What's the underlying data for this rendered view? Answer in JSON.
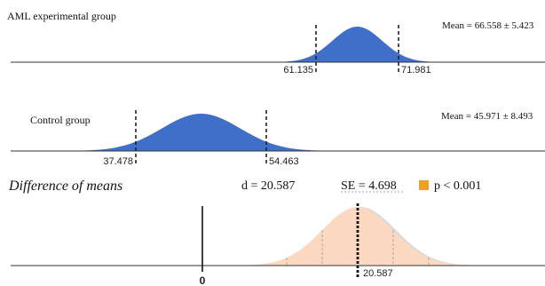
{
  "chart_data": {
    "type": "area",
    "panels": [
      {
        "group": "AML experimental group",
        "mean": 66.558,
        "sd": 5.423,
        "summary": "Mean = 66.558 ± 5.423",
        "lower": 61.135,
        "upper": 71.981,
        "lower_label": "61.135",
        "upper_label": "71.981",
        "color": "#3f6fc8"
      },
      {
        "group": "Control group",
        "mean": 45.971,
        "sd": 8.493,
        "summary": "Mean = 45.971 ± 8.493",
        "lower": 37.478,
        "upper": 54.463,
        "lower_label": "37.478",
        "upper_label": "54.463",
        "color": "#3f6fc8"
      }
    ],
    "difference": {
      "title": "Difference of means",
      "d_text": "d = 20.587",
      "se_text": "SE = 4.698",
      "p_text": "p < 0.001",
      "d": 20.587,
      "se": 4.698,
      "mean_label": "20.587",
      "zero_label": "0",
      "fill_color": "#fbd9c1",
      "legend_color": "#f0a020"
    }
  }
}
